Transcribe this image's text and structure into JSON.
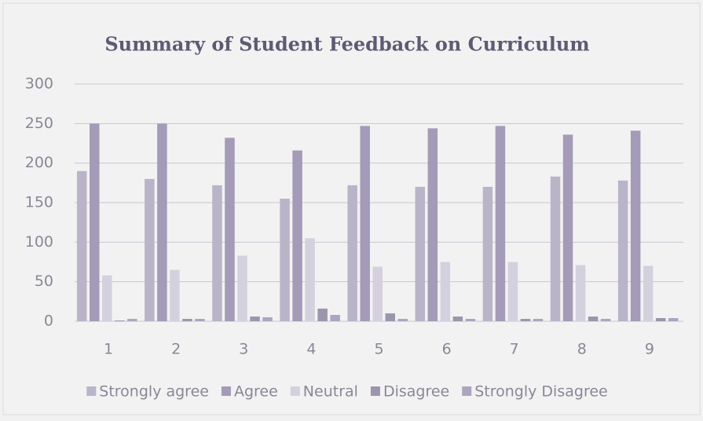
{
  "chart_data": {
    "type": "bar",
    "title": "Summary of Student Feedback on Curriculum",
    "categories": [
      "1",
      "2",
      "3",
      "4",
      "5",
      "6",
      "7",
      "8",
      "9"
    ],
    "series": [
      {
        "name": "Strongly agree",
        "color": "#bab4c9",
        "values": [
          190,
          180,
          172,
          155,
          172,
          170,
          170,
          183,
          178
        ]
      },
      {
        "name": "Agree",
        "color": "#a39bb7",
        "values": [
          250,
          250,
          232,
          216,
          247,
          244,
          247,
          236,
          241
        ]
      },
      {
        "name": "Neutral",
        "color": "#d4d1de",
        "values": [
          58,
          65,
          83,
          105,
          69,
          75,
          75,
          71,
          70
        ]
      },
      {
        "name": "Disagree",
        "color": "#9c96ac",
        "values": [
          1,
          3,
          6,
          16,
          10,
          6,
          3,
          6,
          4
        ]
      },
      {
        "name": "Strongly Disagree",
        "color": "#aca5bf",
        "values": [
          3,
          3,
          5,
          8,
          3,
          3,
          3,
          3,
          4
        ]
      }
    ],
    "ylim": [
      0,
      300
    ],
    "yticks": [
      0,
      50,
      100,
      150,
      200,
      250,
      300
    ],
    "grid": true,
    "legend": "bottom"
  }
}
